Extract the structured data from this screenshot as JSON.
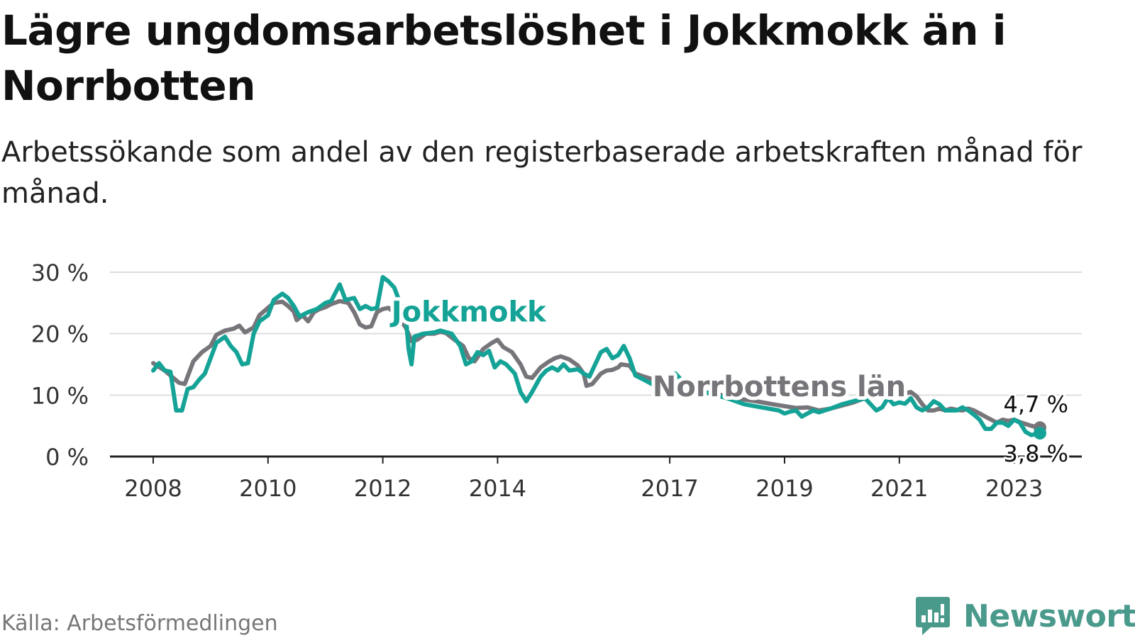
{
  "title": "Lägre ungdomsarbetslöshet i Jokkmokk än i Norrbotten",
  "subtitle": "Arbetssökande som andel av den registerbaserade arbetskraften månad för månad.",
  "source": "Källa: Arbetsförmedlingen",
  "brand": {
    "name": "Newsworthy",
    "icon": "bar-chart-badge-icon",
    "color": "#4a9a8c"
  },
  "chart_data": {
    "type": "line",
    "title": "Lägre ungdomsarbetslöshet i Jokkmokk än i Norrbotten",
    "xlabel": "",
    "ylabel": "",
    "ylim": [
      0,
      30
    ],
    "xlim": [
      2008,
      2023.55
    ],
    "grid": true,
    "y_ticks": [
      {
        "v": 0,
        "label": "0 %"
      },
      {
        "v": 10,
        "label": "10 %"
      },
      {
        "v": 20,
        "label": "20 %"
      },
      {
        "v": 30,
        "label": "30 %"
      }
    ],
    "x_ticks": [
      {
        "v": 2008,
        "label": "2008"
      },
      {
        "v": 2010,
        "label": "2010"
      },
      {
        "v": 2012,
        "label": "2012"
      },
      {
        "v": 2014,
        "label": "2014"
      },
      {
        "v": 2017,
        "label": "2017"
      },
      {
        "v": 2019,
        "label": "2019"
      },
      {
        "v": 2021,
        "label": "2021"
      },
      {
        "v": 2023,
        "label": "2023"
      }
    ],
    "series": [
      {
        "name": "Norrbottens län",
        "color": "#77757a",
        "end_label": "4,7 %",
        "points": [
          [
            2008.0,
            15.2
          ],
          [
            2008.2,
            14.0
          ],
          [
            2008.45,
            12.0
          ],
          [
            2008.55,
            11.8
          ],
          [
            2008.7,
            15.5
          ],
          [
            2008.85,
            17.0
          ],
          [
            2009.0,
            18.0
          ],
          [
            2009.1,
            19.8
          ],
          [
            2009.25,
            20.5
          ],
          [
            2009.4,
            20.8
          ],
          [
            2009.5,
            21.3
          ],
          [
            2009.6,
            20.2
          ],
          [
            2009.75,
            21.0
          ],
          [
            2009.85,
            23.0
          ],
          [
            2010.0,
            24.2
          ],
          [
            2010.1,
            25.0
          ],
          [
            2010.25,
            25.2
          ],
          [
            2010.35,
            24.5
          ],
          [
            2010.45,
            23.6
          ],
          [
            2010.5,
            22.2
          ],
          [
            2010.6,
            23.0
          ],
          [
            2010.7,
            22.0
          ],
          [
            2010.8,
            23.5
          ],
          [
            2010.9,
            24.0
          ],
          [
            2011.0,
            24.3
          ],
          [
            2011.1,
            24.8
          ],
          [
            2011.25,
            25.3
          ],
          [
            2011.4,
            25.0
          ],
          [
            2011.5,
            23.5
          ],
          [
            2011.6,
            21.5
          ],
          [
            2011.7,
            21.0
          ],
          [
            2011.8,
            21.2
          ],
          [
            2011.9,
            23.5
          ],
          [
            2012.0,
            24.0
          ],
          [
            2012.1,
            24.2
          ],
          [
            2012.25,
            23.0
          ],
          [
            2012.4,
            21.0
          ],
          [
            2012.5,
            18.8
          ],
          [
            2012.6,
            19.0
          ],
          [
            2012.75,
            20.0
          ],
          [
            2012.9,
            20.0
          ],
          [
            2013.0,
            20.3
          ],
          [
            2013.1,
            20.1
          ],
          [
            2013.25,
            19.0
          ],
          [
            2013.4,
            18.0
          ],
          [
            2013.5,
            16.0
          ],
          [
            2013.6,
            15.5
          ],
          [
            2013.75,
            17.5
          ],
          [
            2013.9,
            18.5
          ],
          [
            2014.0,
            19.0
          ],
          [
            2014.1,
            17.8
          ],
          [
            2014.25,
            17.0
          ],
          [
            2014.4,
            15.0
          ],
          [
            2014.5,
            13.0
          ],
          [
            2014.6,
            12.8
          ],
          [
            2014.75,
            14.5
          ],
          [
            2014.9,
            15.5
          ],
          [
            2015.0,
            16.0
          ],
          [
            2015.1,
            16.3
          ],
          [
            2015.25,
            15.8
          ],
          [
            2015.4,
            14.8
          ],
          [
            2015.5,
            13.5
          ],
          [
            2015.55,
            11.5
          ],
          [
            2015.65,
            11.8
          ],
          [
            2015.8,
            13.5
          ],
          [
            2015.9,
            14.0
          ],
          [
            2016.0,
            14.1
          ],
          [
            2016.1,
            14.5
          ],
          [
            2016.15,
            15.0
          ],
          [
            2016.3,
            14.8
          ],
          [
            2016.4,
            13.5
          ],
          [
            2016.55,
            13.0
          ],
          [
            2016.8,
            12.3
          ],
          [
            2017.0,
            11.8
          ],
          [
            2017.3,
            11.0
          ],
          [
            2017.6,
            10.5
          ],
          [
            2017.9,
            10.0
          ],
          [
            2018.2,
            9.4
          ],
          [
            2018.5,
            9.0
          ],
          [
            2018.8,
            8.5
          ],
          [
            2019.0,
            8.2
          ],
          [
            2019.2,
            7.9
          ],
          [
            2019.4,
            8.0
          ],
          [
            2019.6,
            7.5
          ],
          [
            2019.8,
            7.8
          ],
          [
            2020.0,
            8.3
          ],
          [
            2020.2,
            8.8
          ],
          [
            2020.4,
            9.5
          ],
          [
            2020.6,
            10.2
          ],
          [
            2020.8,
            10.5
          ],
          [
            2021.0,
            10.5
          ],
          [
            2021.1,
            10.3
          ],
          [
            2021.2,
            10.5
          ],
          [
            2021.3,
            9.8
          ],
          [
            2021.4,
            8.5
          ],
          [
            2021.5,
            7.5
          ],
          [
            2021.6,
            7.5
          ],
          [
            2021.7,
            7.8
          ],
          [
            2021.8,
            7.5
          ],
          [
            2021.9,
            7.8
          ],
          [
            2022.0,
            7.6
          ],
          [
            2022.1,
            7.5
          ],
          [
            2022.2,
            7.8
          ],
          [
            2022.3,
            7.5
          ],
          [
            2022.4,
            7.0
          ],
          [
            2022.5,
            6.5
          ],
          [
            2022.6,
            6.0
          ],
          [
            2022.7,
            5.5
          ],
          [
            2022.8,
            6.0
          ],
          [
            2022.9,
            5.8
          ],
          [
            2023.0,
            6.0
          ],
          [
            2023.1,
            5.6
          ],
          [
            2023.2,
            5.3
          ],
          [
            2023.3,
            5.0
          ],
          [
            2023.45,
            4.7
          ]
        ]
      },
      {
        "name": "Jokkmokk",
        "color": "#14a396",
        "end_label": "3,8 %",
        "points": [
          [
            2008.0,
            14.0
          ],
          [
            2008.1,
            15.2
          ],
          [
            2008.2,
            14.0
          ],
          [
            2008.3,
            13.8
          ],
          [
            2008.4,
            7.5
          ],
          [
            2008.5,
            7.5
          ],
          [
            2008.6,
            11.0
          ],
          [
            2008.7,
            11.3
          ],
          [
            2008.8,
            12.5
          ],
          [
            2008.9,
            13.5
          ],
          [
            2009.0,
            16.0
          ],
          [
            2009.1,
            18.5
          ],
          [
            2009.25,
            19.5
          ],
          [
            2009.35,
            18.0
          ],
          [
            2009.45,
            17.0
          ],
          [
            2009.55,
            15.0
          ],
          [
            2009.65,
            15.2
          ],
          [
            2009.75,
            20.0
          ],
          [
            2009.85,
            22.0
          ],
          [
            2010.0,
            23.0
          ],
          [
            2010.1,
            25.5
          ],
          [
            2010.25,
            26.5
          ],
          [
            2010.35,
            25.8
          ],
          [
            2010.45,
            24.5
          ],
          [
            2010.55,
            22.8
          ],
          [
            2010.7,
            23.5
          ],
          [
            2010.85,
            24.0
          ],
          [
            2011.0,
            25.0
          ],
          [
            2011.1,
            25.3
          ],
          [
            2011.25,
            28.0
          ],
          [
            2011.35,
            25.5
          ],
          [
            2011.5,
            25.8
          ],
          [
            2011.6,
            24.0
          ],
          [
            2011.7,
            24.5
          ],
          [
            2011.8,
            24.0
          ],
          [
            2011.9,
            24.2
          ],
          [
            2012.0,
            29.2
          ],
          [
            2012.1,
            28.5
          ],
          [
            2012.2,
            27.5
          ],
          [
            2012.3,
            25.0
          ],
          [
            2012.4,
            23.0
          ],
          [
            2012.45,
            17.5
          ],
          [
            2012.5,
            15.0
          ],
          [
            2012.55,
            19.5
          ],
          [
            2012.7,
            20.0
          ],
          [
            2012.9,
            20.2
          ],
          [
            2013.0,
            20.5
          ],
          [
            2013.2,
            20.0
          ],
          [
            2013.35,
            18.0
          ],
          [
            2013.45,
            15.0
          ],
          [
            2013.55,
            15.5
          ],
          [
            2013.65,
            17.0
          ],
          [
            2013.75,
            16.5
          ],
          [
            2013.85,
            17.2
          ],
          [
            2013.95,
            14.5
          ],
          [
            2014.05,
            15.5
          ],
          [
            2014.15,
            15.0
          ],
          [
            2014.3,
            13.5
          ],
          [
            2014.4,
            10.5
          ],
          [
            2014.5,
            9.0
          ],
          [
            2014.6,
            10.5
          ],
          [
            2014.75,
            13.0
          ],
          [
            2014.85,
            14.0
          ],
          [
            2014.95,
            14.5
          ],
          [
            2015.05,
            14.0
          ],
          [
            2015.15,
            15.0
          ],
          [
            2015.25,
            14.0
          ],
          [
            2015.4,
            14.2
          ],
          [
            2015.5,
            13.5
          ],
          [
            2015.6,
            13.0
          ],
          [
            2015.7,
            15.0
          ],
          [
            2015.8,
            17.0
          ],
          [
            2015.9,
            17.5
          ],
          [
            2016.0,
            16.0
          ],
          [
            2016.1,
            16.5
          ],
          [
            2016.2,
            18.0
          ],
          [
            2016.3,
            16.0
          ],
          [
            2016.4,
            13.2
          ],
          [
            2016.55,
            12.5
          ],
          [
            2016.75,
            11.5
          ],
          [
            2016.9,
            12.0
          ],
          [
            2017.0,
            13.0
          ],
          [
            2017.1,
            13.5
          ],
          [
            2017.2,
            12.5
          ],
          [
            2017.4,
            11.0
          ],
          [
            2017.6,
            10.5
          ],
          [
            2017.8,
            10.0
          ],
          [
            2018.0,
            9.5
          ],
          [
            2018.3,
            8.5
          ],
          [
            2018.6,
            8.0
          ],
          [
            2018.9,
            7.5
          ],
          [
            2019.0,
            7.0
          ],
          [
            2019.1,
            7.3
          ],
          [
            2019.2,
            7.5
          ],
          [
            2019.3,
            6.5
          ],
          [
            2019.4,
            7.0
          ],
          [
            2019.5,
            7.5
          ],
          [
            2019.6,
            7.2
          ],
          [
            2019.8,
            7.8
          ],
          [
            2020.0,
            8.5
          ],
          [
            2020.2,
            9.0
          ],
          [
            2020.4,
            9.5
          ],
          [
            2020.5,
            8.5
          ],
          [
            2020.6,
            7.5
          ],
          [
            2020.7,
            8.0
          ],
          [
            2020.8,
            9.5
          ],
          [
            2020.9,
            8.5
          ],
          [
            2021.0,
            8.8
          ],
          [
            2021.1,
            8.6
          ],
          [
            2021.2,
            9.5
          ],
          [
            2021.3,
            8.0
          ],
          [
            2021.4,
            7.5
          ],
          [
            2021.5,
            8.0
          ],
          [
            2021.6,
            9.0
          ],
          [
            2021.7,
            8.5
          ],
          [
            2021.8,
            7.5
          ],
          [
            2021.9,
            7.5
          ],
          [
            2022.0,
            7.5
          ],
          [
            2022.1,
            8.0
          ],
          [
            2022.2,
            7.5
          ],
          [
            2022.3,
            6.8
          ],
          [
            2022.4,
            6.0
          ],
          [
            2022.5,
            4.5
          ],
          [
            2022.6,
            4.5
          ],
          [
            2022.7,
            5.5
          ],
          [
            2022.8,
            5.5
          ],
          [
            2022.9,
            5.0
          ],
          [
            2023.0,
            6.0
          ],
          [
            2023.1,
            5.5
          ],
          [
            2023.2,
            4.0
          ],
          [
            2023.3,
            3.5
          ],
          [
            2023.45,
            3.8
          ]
        ]
      }
    ],
    "series_labels": [
      {
        "text": "Jokkmokk",
        "series": "Jokkmokk",
        "x": 2012.15,
        "y": 22.0
      },
      {
        "text": "Norrbottens län",
        "series": "Norrbottens län",
        "x": 2016.7,
        "y": 9.8
      }
    ]
  }
}
